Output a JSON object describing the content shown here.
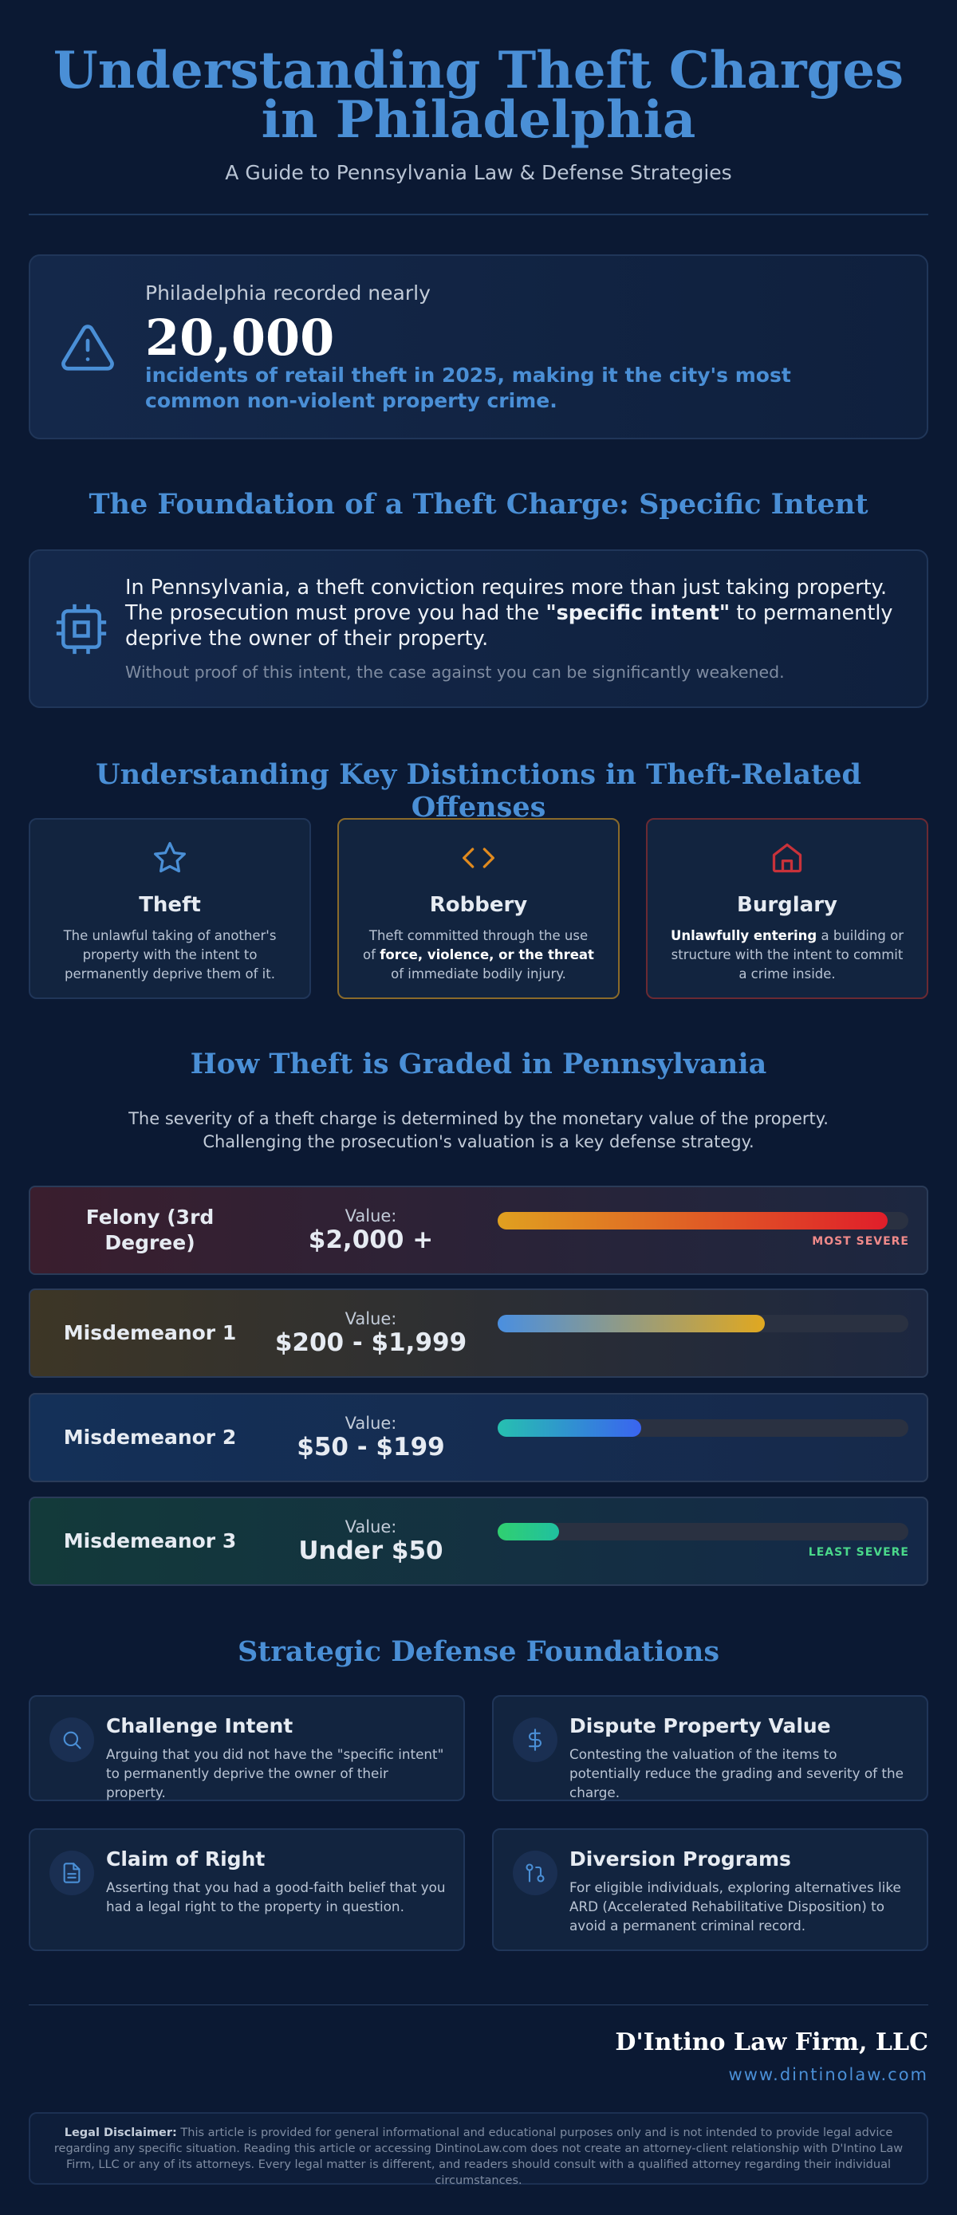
{
  "header": {
    "title": "Understanding Theft Charges in Philadelphia",
    "subtitle": "A Guide to Pennsylvania Law & Defense Strategies"
  },
  "stat": {
    "lead": "Philadelphia recorded nearly",
    "number": "20,000",
    "text": "incidents of retail theft in 2025, making it the city's most common non-violent property crime."
  },
  "intent": {
    "heading": "The Foundation of a Theft Charge: Specific Intent",
    "text_before": "In Pennsylvania, a theft conviction requires more than just taking property. The prosecution must prove you had the ",
    "text_bold": "\"specific intent\"",
    "text_after": " to permanently deprive the owner of their property.",
    "note": "Without proof of this intent, the case against you can be significantly weakened."
  },
  "distinctions": {
    "heading": "Understanding Key Distinctions in Theft-Related Offenses",
    "items": [
      {
        "title": "Theft",
        "parts": [
          {
            "text": "The unlawful taking of another's property with the intent to permanently deprive them of it."
          }
        ]
      },
      {
        "title": "Robbery",
        "parts": [
          {
            "text": "Theft committed through the use of "
          },
          {
            "text": "force, violence, or the threat",
            "bold": true
          },
          {
            "text": " of immediate bodily injury."
          }
        ]
      },
      {
        "title": "Burglary",
        "parts": [
          {
            "text": "Unlawfully entering",
            "bold": true
          },
          {
            "text": " a building or structure with the intent to commit a crime inside."
          }
        ]
      }
    ]
  },
  "grading": {
    "heading": "How Theft is Graded in Pennsylvania",
    "intro": [
      "The severity of a theft charge is determined by the monetary value of the property.",
      "Challenging the prosecution's valuation is a key defense strategy."
    ],
    "tiers": [
      {
        "name": "Felony (3rd Degree)",
        "value_label": "Value:",
        "value": "$2,000 +",
        "tag": "MOST SEVERE"
      },
      {
        "name": "Misdemeanor 1",
        "value_label": "Value:",
        "value": "$200 - $1,999"
      },
      {
        "name": "Misdemeanor 2",
        "value_label": "Value:",
        "value": "$50 - $199"
      },
      {
        "name": "Misdemeanor 3",
        "value_label": "Value:",
        "value": "Under $50",
        "tag": "LEAST SEVERE"
      }
    ]
  },
  "defense": {
    "heading": "Strategic Defense Foundations",
    "items": [
      {
        "title": "Challenge Intent",
        "desc": "Arguing that you did not have the \"specific intent\" to permanently deprive the owner of their property."
      },
      {
        "title": "Dispute Property Value",
        "desc": "Contesting the valuation of the items to potentially reduce the grading and severity of the charge."
      },
      {
        "title": "Claim of Right",
        "desc": "Asserting that you had a good-faith belief that you had a legal right to the property in question."
      },
      {
        "title": "Diversion Programs",
        "desc": "For eligible individuals, exploring alternatives like ARD (Accelerated Rehabilitative Disposition) to avoid a permanent criminal record."
      }
    ]
  },
  "footer": {
    "firm": "D'Intino Law Firm, LLC",
    "url": "www.dintinolaw.com",
    "disclaimer_label": "Legal Disclaimer:",
    "disclaimer": " This article is provided for general informational and educational purposes only and is not intended to provide legal advice regarding any specific situation. Reading this article or accessing DintinoLaw.com does not create an attorney-client relationship with D'Intino Law Firm, LLC or any of its attorneys. Every legal matter is different, and readers should consult with a qualified attorney regarding their individual circumstances."
  }
}
